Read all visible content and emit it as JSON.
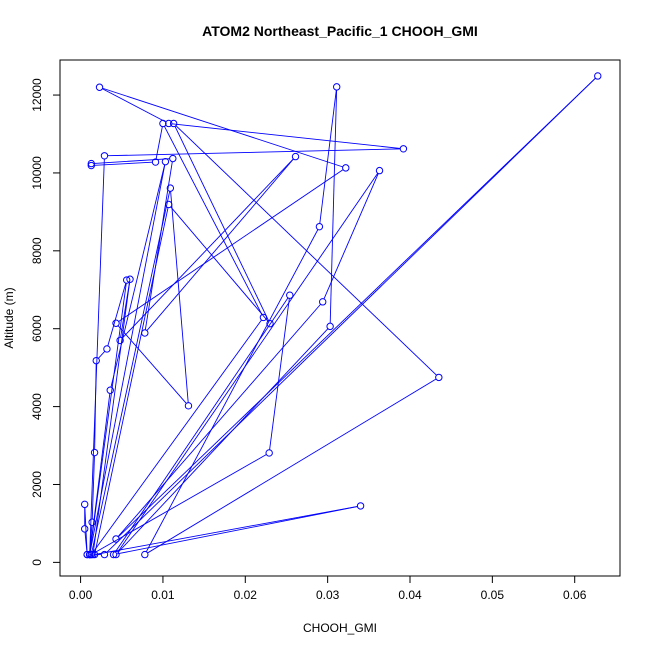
{
  "chart_data": {
    "type": "line",
    "title": "ATOM2 Northeast_Pacific_1 CHOOH_GMI",
    "xlabel": "CHOOH_GMI",
    "ylabel": "Altitude (m)",
    "xlim": [
      -0.0025,
      0.0655
    ],
    "ylim": [
      -350,
      12900
    ],
    "x_ticks": [
      0.0,
      0.01,
      0.02,
      0.03,
      0.04,
      0.05,
      0.06
    ],
    "x_tick_labels": [
      "0.00",
      "0.01",
      "0.02",
      "0.03",
      "0.04",
      "0.05",
      "0.06"
    ],
    "y_ticks": [
      0,
      2000,
      4000,
      6000,
      8000,
      10000,
      12000
    ],
    "y_tick_labels": [
      "0",
      "2000",
      "4000",
      "6000",
      "8000",
      "10000",
      "12000"
    ],
    "grid": false,
    "legend": "none",
    "series": [
      {
        "color": "#0000ff",
        "marker": "open-circle",
        "line": true,
        "points": [
          [
            0.0008,
            200
          ],
          [
            0.0005,
            860
          ],
          [
            0.0005,
            1490
          ],
          [
            0.0008,
            200
          ],
          [
            0.0011,
            200
          ],
          [
            0.0014,
            1030
          ],
          [
            0.0017,
            2820
          ],
          [
            0.0019,
            5180
          ],
          [
            0.0032,
            5480
          ],
          [
            0.0056,
            7250
          ],
          [
            0.0011,
            200
          ],
          [
            0.0036,
            4420
          ],
          [
            0.0103,
            10290
          ],
          [
            0.0011,
            200
          ],
          [
            0.0029,
            10440
          ],
          [
            0.0392,
            10620
          ],
          [
            0.0107,
            11270
          ],
          [
            0.0023,
            12200
          ],
          [
            0.0322,
            10130
          ],
          [
            0.0043,
            6140
          ],
          [
            0.0131,
            4020
          ],
          [
            0.0109,
            9610
          ],
          [
            0.0013,
            200
          ],
          [
            0.0029,
            200
          ],
          [
            0.0628,
            12490
          ],
          [
            0.0043,
            600
          ],
          [
            0.0294,
            6690
          ],
          [
            0.0363,
            10060
          ],
          [
            0.0043,
            200
          ],
          [
            0.0303,
            6060
          ],
          [
            0.0311,
            12210
          ],
          [
            0.029,
            8620
          ],
          [
            0.0078,
            200
          ],
          [
            0.0435,
            4750
          ],
          [
            0.0113,
            11270
          ],
          [
            0.023,
            6130
          ],
          [
            0.0107,
            9190
          ],
          [
            0.0017,
            200
          ],
          [
            0.034,
            1450
          ],
          [
            0.004,
            200
          ],
          [
            0.0254,
            6860
          ],
          [
            0.0229,
            2810
          ],
          [
            0.0013,
            200
          ],
          [
            0.0222,
            6290
          ],
          [
            0.01,
            11270
          ],
          [
            0.0091,
            10280
          ],
          [
            0.0013,
            10190
          ],
          [
            0.0013,
            10240
          ],
          [
            0.0112,
            10370
          ],
          [
            0.0078,
            5890
          ],
          [
            0.0261,
            10420
          ],
          [
            0.0048,
            5700
          ],
          [
            0.006,
            7270
          ],
          [
            0.0015,
            200
          ]
        ]
      }
    ]
  }
}
